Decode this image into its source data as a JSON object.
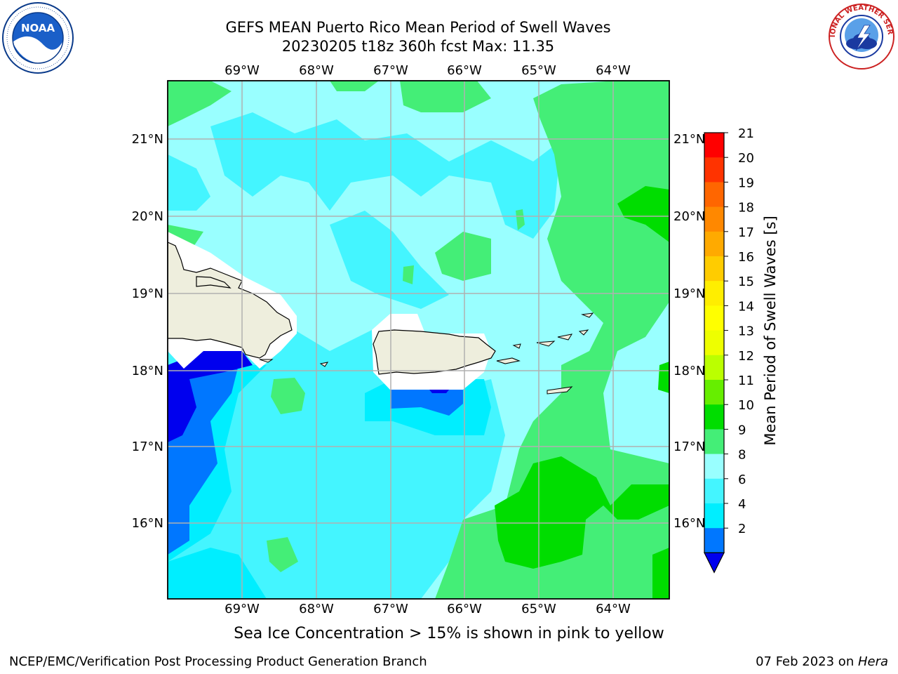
{
  "header": {
    "title_line1": "GEFS MEAN Puerto Rico Mean Period of Swell Waves",
    "title_line2": "20230205 t18z 360h fcst   Max: 11.35"
  },
  "logos": {
    "left": {
      "name": "noaa-logo",
      "text": "NOAA"
    },
    "right": {
      "name": "nws-logo",
      "text": "NATIONAL WEATHER SERVICE"
    }
  },
  "map": {
    "lon_labels": [
      "69°W",
      "68°W",
      "67°W",
      "66°W",
      "65°W",
      "64°W"
    ],
    "lat_labels": [
      "21°N",
      "20°N",
      "19°N",
      "18°N",
      "17°N",
      "16°N"
    ],
    "colors": {
      "land": "#eeeedd",
      "grid": "#b0b0b0",
      "deep_blue": "#0000ee",
      "blue": "#0077ff",
      "cyan": "#00eeff",
      "light_cyan": "#44f5ff",
      "pale_cyan": "#99ffff",
      "light_green": "#44ee77",
      "green": "#00dd00"
    }
  },
  "colorbar": {
    "label": "Mean Period of Swell Waves [s]",
    "ticks": [
      "21",
      "20",
      "19",
      "18",
      "17",
      "16",
      "15",
      "14",
      "13",
      "12",
      "11",
      "10",
      "9",
      "8",
      "6",
      "4",
      "2"
    ],
    "colors": [
      "#ff0000",
      "#ff3300",
      "#ff6600",
      "#ff8800",
      "#ffaa00",
      "#ffcc00",
      "#ffee00",
      "#ffff00",
      "#eeff00",
      "#bbff00",
      "#66ee00",
      "#00dd00",
      "#44ee77",
      "#99ffff",
      "#44f5ff",
      "#00eeff",
      "#0077ff"
    ],
    "extend_color": "#0000ee"
  },
  "caption": "Sea Ice Concentration > 15% is shown in pink to yellow",
  "footer": {
    "left": "NCEP/EMC/Verification Post Processing Product Generation Branch",
    "right_prefix": "07 Feb 2023 on ",
    "right_italic": "Hera"
  }
}
